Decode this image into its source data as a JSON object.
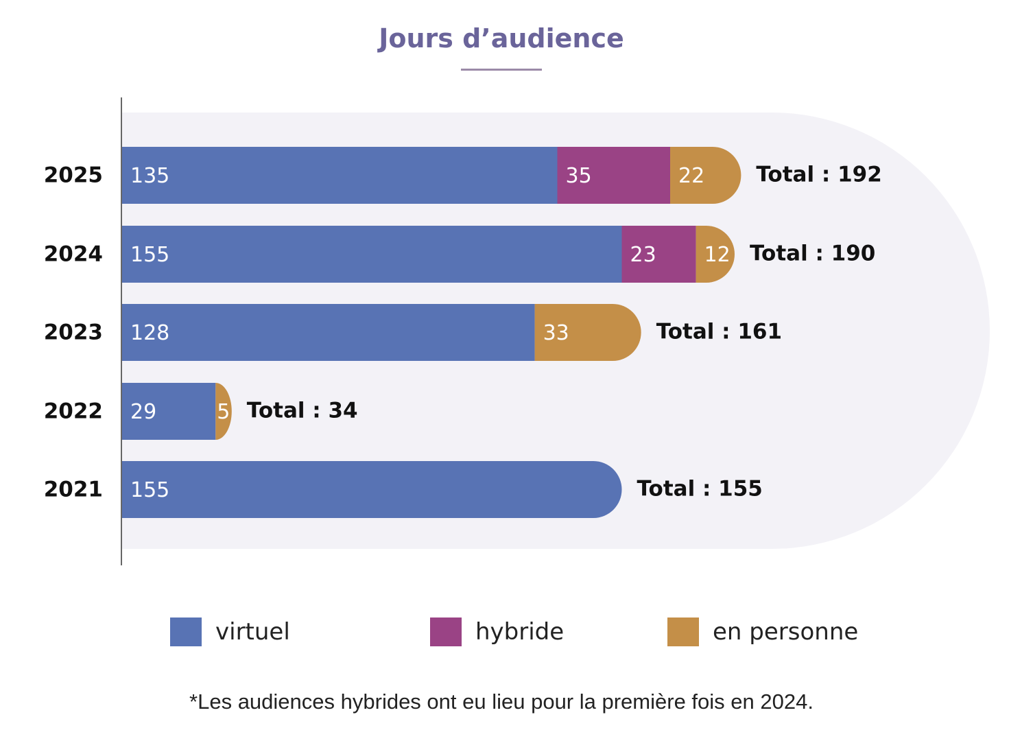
{
  "chart_data": {
    "type": "bar",
    "orientation": "horizontal",
    "stacked": true,
    "title": "Jours d’audience",
    "categories": [
      "2025",
      "2024",
      "2023",
      "2022",
      "2021"
    ],
    "series": [
      {
        "name": "virtuel",
        "color": "#5873b4",
        "values": [
          135,
          155,
          128,
          29,
          155
        ]
      },
      {
        "name": "hybride",
        "color": "#9a4385",
        "values": [
          35,
          23,
          0,
          0,
          0
        ]
      },
      {
        "name": "en personne",
        "color": "#c48f48",
        "values": [
          22,
          12,
          33,
          5,
          0
        ]
      }
    ],
    "totals": [
      {
        "label": "Total : 192",
        "value": 192
      },
      {
        "label": "Total : 190",
        "value": 190
      },
      {
        "label": "Total : 161",
        "value": 161
      },
      {
        "label": "Total : 34",
        "value": 34
      },
      {
        "label": "Total : 155",
        "value": 155
      }
    ],
    "legend_position": "bottom",
    "grid": false,
    "footnote": "*Les audiences hybrides ont eu lieu pour la première fois en 2024."
  }
}
